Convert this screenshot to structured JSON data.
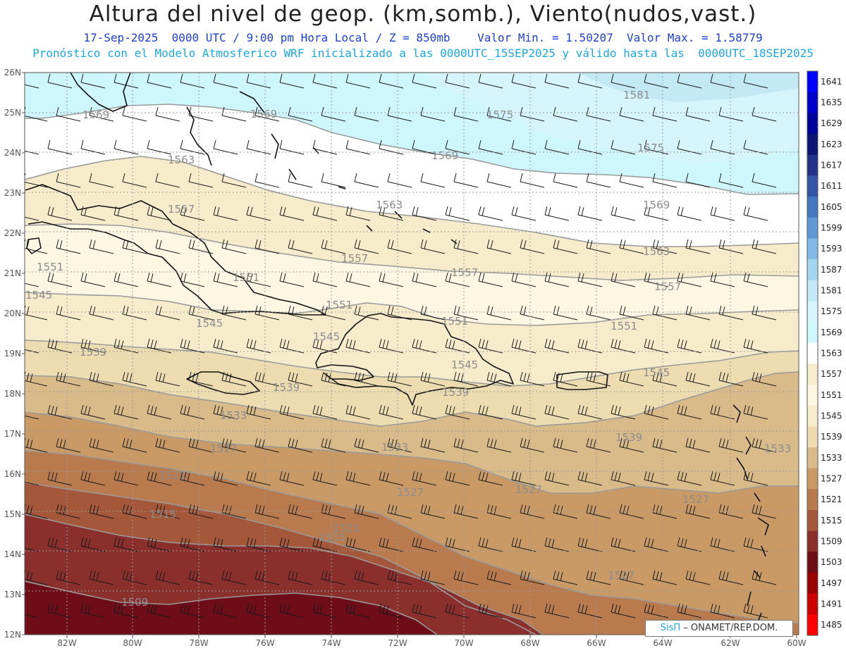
{
  "header": {
    "title": "Altura del nivel de geop. (km,somb.), Viento(nudos,vast.)",
    "line1": "17-Sep-2025  0000 UTC / 9:00 pm Hora Local / Z = 850mb    Valor Min. = 1.50207  Valor Max. = 1.58779",
    "line2": "Pronóstico con el Modelo Atmosferico WRF inicializado a las 0000UTC_15SEP2025 y válido hasta las  0000UTC_18SEP2025"
  },
  "map": {
    "lat_labels": [
      "26N",
      "25N",
      "24N",
      "23N",
      "22N",
      "21N",
      "20N",
      "19N",
      "18N",
      "17N",
      "16N",
      "15N",
      "14N",
      "13N",
      "12N"
    ],
    "lon_labels": [
      "82W",
      "80W",
      "78W",
      "76W",
      "74W",
      "72W",
      "70W",
      "68W",
      "66W",
      "64W",
      "62W",
      "60W"
    ],
    "contour_labels": [
      {
        "id": "c1581",
        "text": "1581"
      },
      {
        "id": "c1575a",
        "text": "1575"
      },
      {
        "id": "c1575b",
        "text": "1575"
      },
      {
        "id": "c1569a",
        "text": "1569"
      },
      {
        "id": "c1569b",
        "text": "1569"
      },
      {
        "id": "c1569c",
        "text": "1569"
      },
      {
        "id": "c1569d",
        "text": "1569"
      },
      {
        "id": "c1563a",
        "text": "1563"
      },
      {
        "id": "c1563b",
        "text": "1563"
      },
      {
        "id": "c1563c",
        "text": "1563"
      },
      {
        "id": "c1557a",
        "text": "1557"
      },
      {
        "id": "c1557b",
        "text": "1557"
      },
      {
        "id": "c1557c",
        "text": "1557"
      },
      {
        "id": "c1557d",
        "text": "1557"
      },
      {
        "id": "c1551a",
        "text": "1551"
      },
      {
        "id": "c1551b",
        "text": "1551"
      },
      {
        "id": "c1551c",
        "text": "1551"
      },
      {
        "id": "c1551d",
        "text": "1551"
      },
      {
        "id": "c1551e",
        "text": "1551"
      },
      {
        "id": "c1545a",
        "text": "1545"
      },
      {
        "id": "c1545b",
        "text": "1545"
      },
      {
        "id": "c1545c",
        "text": "1545"
      },
      {
        "id": "c1545d",
        "text": "1545"
      },
      {
        "id": "c1545e",
        "text": "1545"
      },
      {
        "id": "c1539a",
        "text": "1539"
      },
      {
        "id": "c1539b",
        "text": "1539"
      },
      {
        "id": "c1539c",
        "text": "1539"
      },
      {
        "id": "c1539d",
        "text": "1539"
      },
      {
        "id": "c1533a",
        "text": "1533"
      },
      {
        "id": "c1533b",
        "text": "1533"
      },
      {
        "id": "c1533c",
        "text": "1533"
      },
      {
        "id": "c1527a",
        "text": "1527"
      },
      {
        "id": "c1527b",
        "text": "1527"
      },
      {
        "id": "c1527c",
        "text": "1527"
      },
      {
        "id": "c1527d",
        "text": "1527"
      },
      {
        "id": "c1527e",
        "text": "1527"
      },
      {
        "id": "c1521a",
        "text": "1521"
      },
      {
        "id": "c1521b",
        "text": "1521"
      },
      {
        "id": "c1515a",
        "text": "1515"
      },
      {
        "id": "c1515b",
        "text": "1515"
      },
      {
        "id": "c1509",
        "text": "1509"
      }
    ],
    "colorbar": [
      {
        "label": "1641",
        "color": "#0000ff"
      },
      {
        "label": "1635",
        "color": "#0000cc"
      },
      {
        "label": "1629",
        "color": "#00009a"
      },
      {
        "label": "1623",
        "color": "#0d1473"
      },
      {
        "label": "1617",
        "color": "#23318a"
      },
      {
        "label": "1611",
        "color": "#3355a8"
      },
      {
        "label": "1605",
        "color": "#4576c0"
      },
      {
        "label": "1599",
        "color": "#5f98d2"
      },
      {
        "label": "1593",
        "color": "#80b9e3"
      },
      {
        "label": "1587",
        "color": "#a3d6ef"
      },
      {
        "label": "1581",
        "color": "#c3e9f5"
      },
      {
        "label": "1575",
        "color": "#d6f4fb"
      },
      {
        "label": "1569",
        "color": "#cdf6fd"
      },
      {
        "label": "1563",
        "color": "#ffffff"
      },
      {
        "label": "1557",
        "color": "#f6eccb"
      },
      {
        "label": "1551",
        "color": "#fdf6e2"
      },
      {
        "label": "1545",
        "color": "#f6eccb"
      },
      {
        "label": "1539",
        "color": "#ecdcb0"
      },
      {
        "label": "1533",
        "color": "#d9bb8a"
      },
      {
        "label": "1527",
        "color": "#c99a66"
      },
      {
        "label": "1521",
        "color": "#b97b4e"
      },
      {
        "label": "1515",
        "color": "#a55739"
      },
      {
        "label": "1509",
        "color": "#8a2f2c"
      },
      {
        "label": "1503",
        "color": "#6e0d17"
      },
      {
        "label": "1497",
        "color": "#9b0000"
      },
      {
        "label": "1491",
        "color": "#cc0000"
      },
      {
        "label": "1485",
        "color": "#ff0000"
      }
    ]
  },
  "credit": {
    "brand": "SisΠ",
    "text": " – ONAMET/REP.DOM."
  }
}
